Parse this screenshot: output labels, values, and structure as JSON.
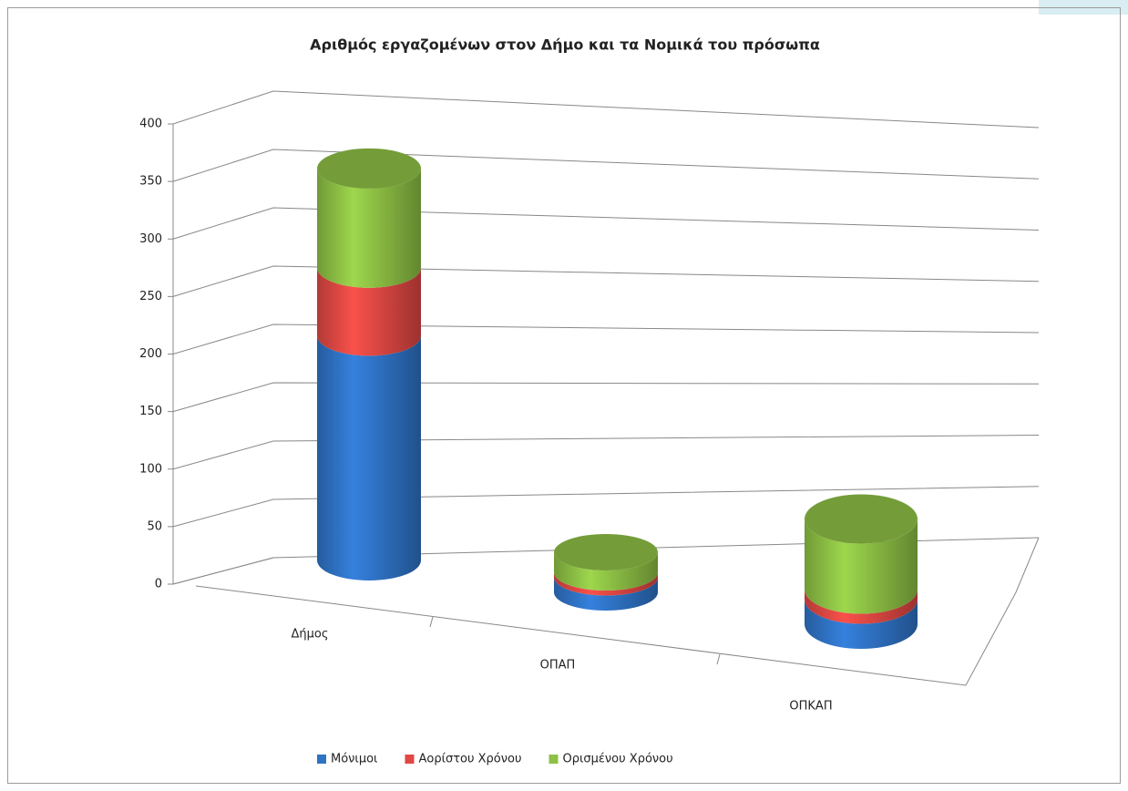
{
  "chart_data": {
    "type": "bar",
    "title": "Αριθμός εργαζομένων στον Δήμο και τα Νομικά του πρόσωπα",
    "categories": [
      "Δήμος",
      "ΟΠΑΠ",
      "ΟΠΚΑΠ"
    ],
    "series": [
      {
        "name": "Μόνιμοι",
        "color": "#2f73c6",
        "values": [
          215,
          15,
          25
        ]
      },
      {
        "name": "Αορίστου Χρόνου",
        "color": "#df4843",
        "values": [
          65,
          5,
          10
        ]
      },
      {
        "name": "Ορισμένου Χρόνου",
        "color": "#8dc045",
        "values": [
          95,
          20,
          70
        ]
      }
    ],
    "ylim": [
      0,
      400
    ],
    "yticks": [
      0,
      50,
      100,
      150,
      200,
      250,
      300,
      350,
      400
    ],
    "grid": true,
    "legend": "bottom"
  }
}
